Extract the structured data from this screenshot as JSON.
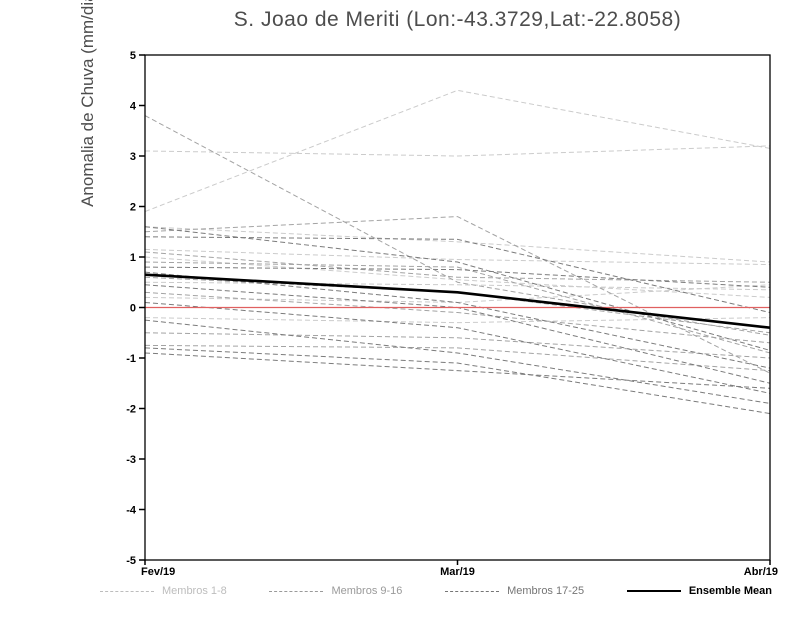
{
  "chart_data": {
    "type": "line",
    "title": "S. Joao de Meriti (Lon:-43.3729,Lat:-22.8058)",
    "ylabel": "Anomalia de Chuva (mm/dia)",
    "xlabel": "",
    "x_categories": [
      "Fev/19",
      "Mar/19",
      "Abr/19"
    ],
    "ylim": [
      -5,
      5
    ],
    "yticks": [
      -5,
      -4,
      -3,
      -2,
      -1,
      0,
      1,
      2,
      3,
      4,
      5
    ],
    "grid": false,
    "zero_line_color": "#e06060",
    "groups": [
      {
        "name": "Membros 1-8",
        "color": "#cbcbcb",
        "style": "dashed",
        "members": [
          [
            3.1,
            3.0,
            3.2
          ],
          [
            1.9,
            4.3,
            3.15
          ],
          [
            1.6,
            1.3,
            0.9
          ],
          [
            1.15,
            0.95,
            0.85
          ],
          [
            0.5,
            0.45,
            0.35
          ],
          [
            0.2,
            0.1,
            0.45
          ],
          [
            -0.2,
            -0.3,
            -0.2
          ],
          [
            1.0,
            0.55,
            0.2
          ]
        ]
      },
      {
        "name": "Membros 9-16",
        "color": "#a3a3a3",
        "style": "dashed",
        "members": [
          [
            3.8,
            0.5,
            -0.55
          ],
          [
            1.5,
            1.8,
            -1.3
          ],
          [
            0.9,
            0.8,
            -0.9
          ],
          [
            0.6,
            0.3,
            -0.5
          ],
          [
            0.3,
            -0.1,
            -0.7
          ],
          [
            -0.5,
            -0.6,
            -1.0
          ],
          [
            -0.75,
            -0.8,
            -1.25
          ],
          [
            1.1,
            0.6,
            0.5
          ]
        ]
      },
      {
        "name": "Membros 17-25",
        "color": "#7b7b7b",
        "style": "dashed",
        "members": [
          [
            1.4,
            1.35,
            -0.1
          ],
          [
            0.8,
            0.75,
            0.4
          ],
          [
            0.45,
            0.0,
            -1.5
          ],
          [
            0.1,
            -0.4,
            -1.7
          ],
          [
            -0.25,
            -0.9,
            -1.9
          ],
          [
            -0.8,
            -1.1,
            -2.1
          ],
          [
            -0.9,
            -1.25,
            -1.6
          ],
          [
            0.7,
            0.1,
            -1.2
          ],
          [
            1.6,
            0.9,
            -0.85
          ]
        ]
      }
    ],
    "mean": {
      "name": "Ensemble Mean",
      "color": "#000000",
      "style": "solid",
      "values": [
        0.65,
        0.3,
        -0.4
      ]
    }
  },
  "legend": {
    "items": [
      {
        "label": "Membros 1-8",
        "color": "#bdbdbd",
        "style": "dashed",
        "weight": 1
      },
      {
        "label": "Membros 9-16",
        "color": "#9a9a9a",
        "style": "dashed",
        "weight": 1
      },
      {
        "label": "Membros 17-25",
        "color": "#757575",
        "style": "dashed",
        "weight": 1
      },
      {
        "label": "Ensemble Mean",
        "color": "#000000",
        "style": "solid",
        "weight": 2
      }
    ]
  }
}
